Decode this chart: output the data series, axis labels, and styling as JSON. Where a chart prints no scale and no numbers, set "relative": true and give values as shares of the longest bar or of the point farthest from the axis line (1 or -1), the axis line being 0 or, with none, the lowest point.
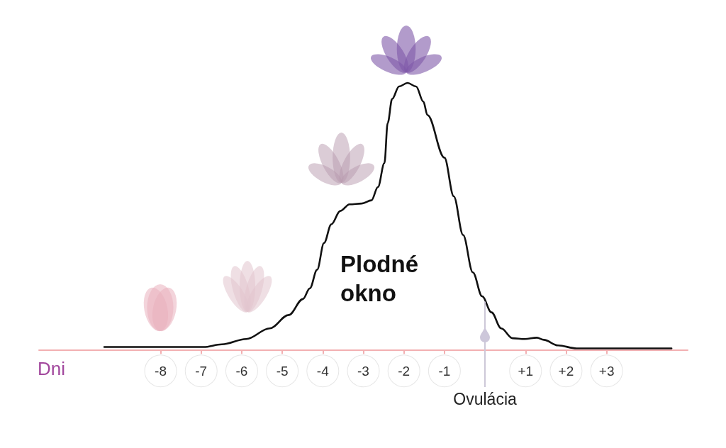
{
  "chart_data": {
    "type": "line",
    "xlabel": "Dni",
    "relative": true,
    "x": [
      -9.39,
      -6.94,
      -6.49,
      -5.89,
      -5.31,
      -4.84,
      -4.49,
      -4.32,
      -4.14,
      -3.97,
      -3.79,
      -3.57,
      -3.34,
      -3.04,
      -2.8,
      -2.64,
      -2.48,
      -2.4,
      -2.29,
      -2.12,
      -1.91,
      -1.7,
      -1.52,
      -1.42,
      -1.0,
      -0.77,
      -0.54,
      -0.3,
      -0.07,
      0.16,
      0.4,
      0.68,
      0.98,
      1.28,
      1.45,
      1.8,
      2.26,
      2.95,
      4.6
    ],
    "series": [
      {
        "color": "#111111",
        "values": [
          0.01,
          0.01,
          0.02,
          0.04,
          0.08,
          0.13,
          0.19,
          0.23,
          0.3,
          0.4,
          0.47,
          0.52,
          0.545,
          0.548,
          0.56,
          0.61,
          0.7,
          0.85,
          0.94,
          0.987,
          1,
          0.987,
          0.93,
          0.88,
          0.72,
          0.575,
          0.43,
          0.29,
          0.2,
          0.14,
          0.08,
          0.043,
          0.04,
          0.045,
          0.037,
          0.016,
          0.005,
          0.005,
          0.005
        ]
      }
    ],
    "xlim": [
      -11,
      5
    ],
    "xticks": [
      -8,
      -7,
      -6,
      -5,
      -4,
      -3,
      -2,
      -1,
      {
        "value": 1,
        "label": "+1"
      },
      {
        "value": 2,
        "label": "+2"
      },
      {
        "value": 3,
        "label": "+3"
      }
    ],
    "ref_lines": [
      {
        "axis": "x",
        "value": 0,
        "label": "Ovulácia",
        "color": "#cdc8d8"
      }
    ],
    "annotations": [
      "Plodné okno"
    ],
    "marker": "none",
    "line_style": "solid"
  }
}
